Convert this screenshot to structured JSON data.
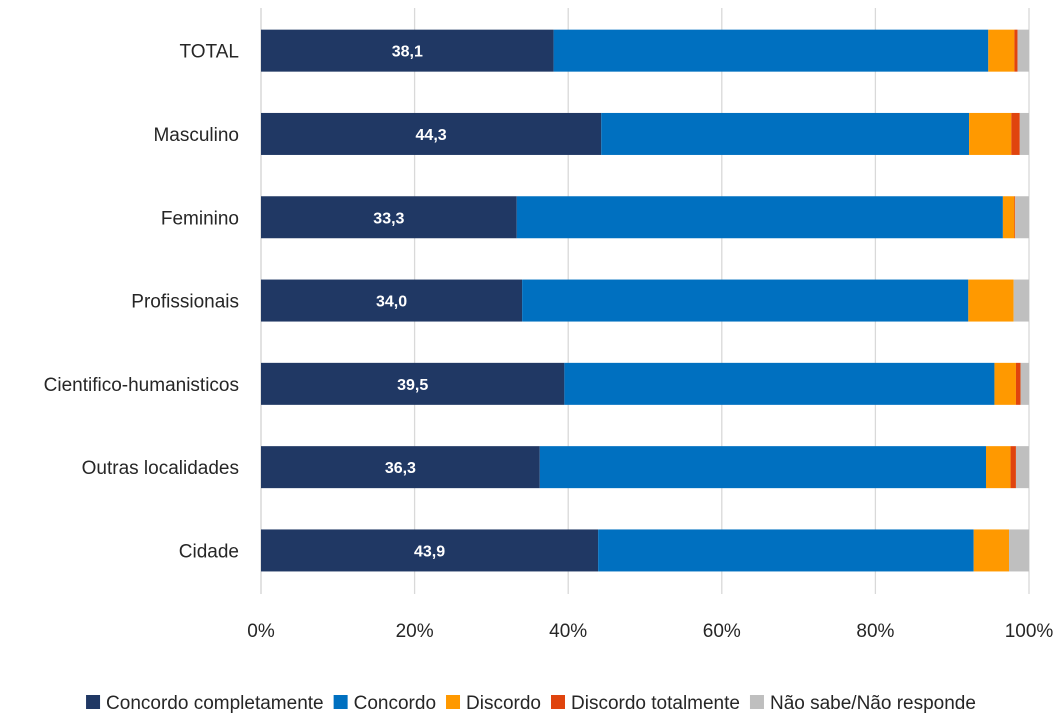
{
  "chart_data": {
    "type": "bar",
    "orientation": "horizontal",
    "stacked": "percent",
    "title": "",
    "xlabel": "",
    "ylabel": "",
    "xlim": [
      0,
      100
    ],
    "x_ticks": [
      "0%",
      "20%",
      "40%",
      "60%",
      "80%",
      "100%"
    ],
    "grid": "vertical",
    "legend_position": "bottom",
    "categories": [
      "TOTAL",
      "Masculino",
      "Feminino",
      "Profissionais",
      "Cientifico-humanisticos",
      "Outras localidades",
      "Cidade"
    ],
    "data_labels": [
      "38,1",
      "44,3",
      "33,3",
      "34,0",
      "39,5",
      "36,3",
      "43,9"
    ],
    "series": [
      {
        "name": "Concordo completamente",
        "color": "#203864",
        "values": [
          38.1,
          44.3,
          33.3,
          34.0,
          39.5,
          36.3,
          43.9
        ]
      },
      {
        "name": "Concordo",
        "color": "#0070C0",
        "values": [
          56.6,
          47.9,
          63.3,
          58.1,
          56.0,
          58.1,
          48.9
        ]
      },
      {
        "name": "Discordo",
        "color": "#FF9900",
        "values": [
          3.4,
          5.5,
          1.5,
          5.9,
          2.8,
          3.2,
          4.6
        ]
      },
      {
        "name": "Discordo totalmente",
        "color": "#E0440E",
        "values": [
          0.4,
          1.1,
          0.1,
          0.0,
          0.6,
          0.7,
          0.0
        ]
      },
      {
        "name": "Não sabe/Não responde",
        "color": "#BFBFBF",
        "values": [
          1.5,
          1.2,
          1.8,
          2.0,
          1.1,
          1.7,
          2.6
        ]
      }
    ]
  }
}
